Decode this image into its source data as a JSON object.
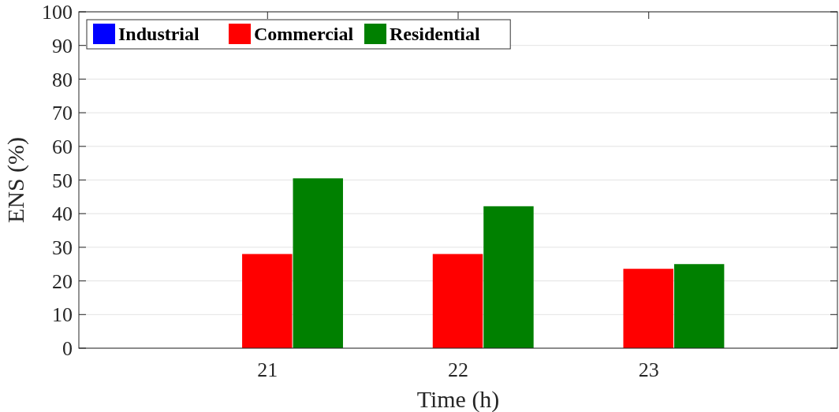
{
  "chart_data": {
    "type": "bar",
    "xlabel": "Time (h)",
    "ylabel": "ENS (%)",
    "categories": [
      "21",
      "22",
      "23"
    ],
    "series": [
      {
        "name": "Industrial",
        "color": "#0000ff",
        "values": [
          0,
          0,
          0
        ]
      },
      {
        "name": "Commercial",
        "color": "#ff0000",
        "values": [
          28,
          28,
          23.6
        ]
      },
      {
        "name": "Residential",
        "color": "#008000",
        "values": [
          50.5,
          42.2,
          25
        ]
      }
    ],
    "ylim": [
      0,
      100
    ],
    "yticks": [
      0,
      10,
      20,
      30,
      40,
      50,
      60,
      70,
      80,
      90,
      100
    ],
    "grid": "y",
    "legend": "top left"
  }
}
